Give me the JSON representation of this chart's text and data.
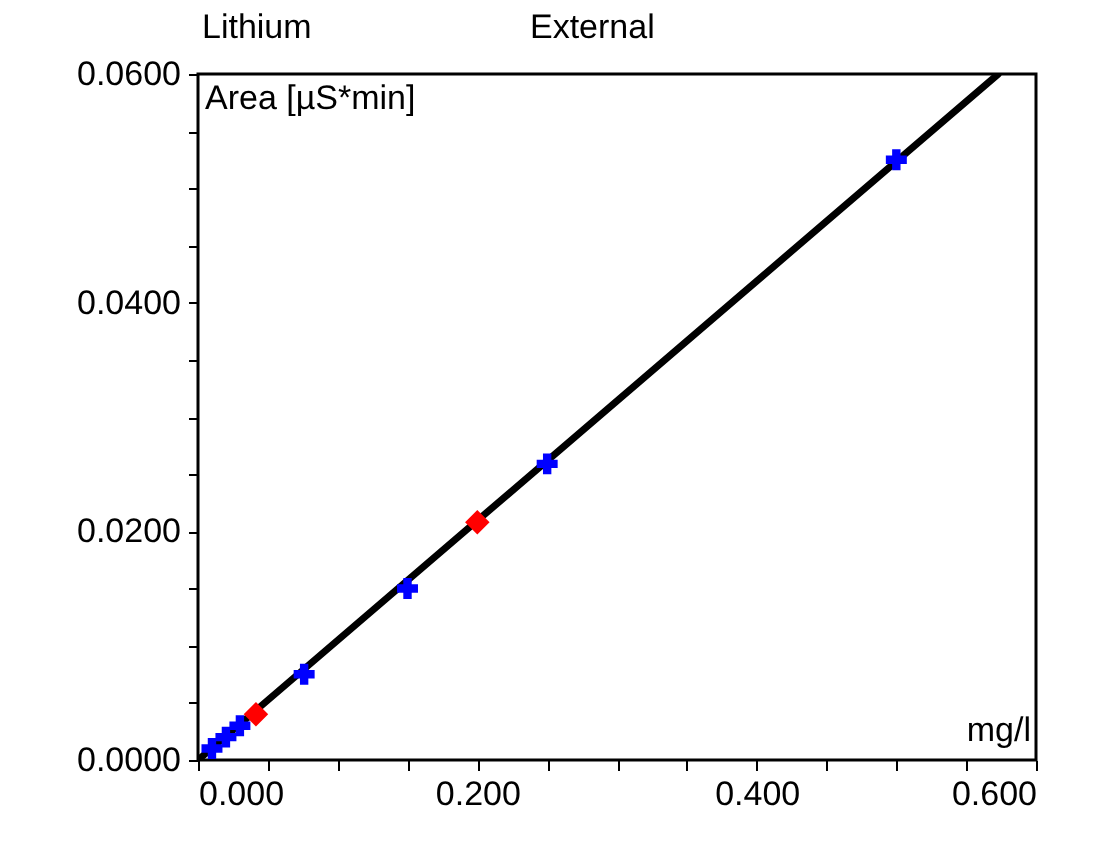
{
  "chart_data": {
    "type": "scatter",
    "title": "Lithium",
    "subtitle": "External",
    "xlabel": "mg/l",
    "ylabel": "Area  [µS*min]",
    "xlim": [
      0,
      0.6
    ],
    "ylim": [
      0,
      0.06
    ],
    "xticks": [
      {
        "value": 0,
        "label": "0.000"
      },
      {
        "value": 0.05,
        "label": null
      },
      {
        "value": 0.1,
        "label": null
      },
      {
        "value": 0.15,
        "label": null
      },
      {
        "value": 0.2,
        "label": "0.200"
      },
      {
        "value": 0.25,
        "label": null
      },
      {
        "value": 0.3,
        "label": null
      },
      {
        "value": 0.35,
        "label": null
      },
      {
        "value": 0.4,
        "label": "0.400"
      },
      {
        "value": 0.45,
        "label": null
      },
      {
        "value": 0.5,
        "label": null
      },
      {
        "value": 0.55,
        "label": null
      },
      {
        "value": 0.6,
        "label": "0.600"
      }
    ],
    "yticks": [
      {
        "value": 0,
        "label": "0.0000"
      },
      {
        "value": 0.005,
        "label": null
      },
      {
        "value": 0.01,
        "label": null
      },
      {
        "value": 0.015,
        "label": null
      },
      {
        "value": 0.02,
        "label": "0.0200"
      },
      {
        "value": 0.025,
        "label": null
      },
      {
        "value": 0.03,
        "label": null
      },
      {
        "value": 0.035,
        "label": null
      },
      {
        "value": 0.04,
        "label": "0.0400"
      },
      {
        "value": 0.045,
        "label": null
      },
      {
        "value": 0.05,
        "label": null
      },
      {
        "value": 0.055,
        "label": null
      },
      {
        "value": 0.06,
        "label": "0.0600"
      }
    ],
    "grid": false,
    "series": [
      {
        "type": "line",
        "color": "#000000",
        "marker": "none",
        "line_style": "solid",
        "x": [
          0,
          0.573
        ],
        "values": [
          0,
          0.06
        ]
      },
      {
        "type": "scatter",
        "color": "#0000ff",
        "marker": "cross",
        "x": [
          0.01,
          0.02,
          0.03,
          0.076,
          0.15,
          0.25,
          0.5
        ],
        "values": [
          0.001,
          0.002,
          0.003,
          0.0075,
          0.015,
          0.0259,
          0.0525
        ]
      },
      {
        "type": "scatter",
        "color": "#ff0000",
        "marker": "diamond",
        "x": [
          0.0415,
          0.2
        ],
        "values": [
          0.004,
          0.0208
        ]
      }
    ]
  }
}
